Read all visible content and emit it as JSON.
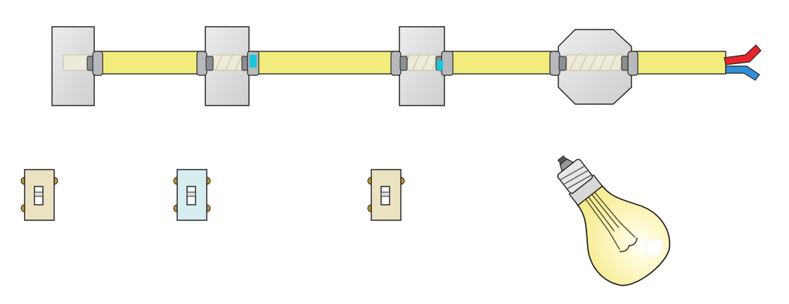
{
  "diagram": {
    "kind": "wiring-diagram-illustration",
    "components": {
      "cable": {
        "name": "yellow-sheathed-cable",
        "color": "#f2ec7c"
      },
      "wires": [
        {
          "name": "live-wire",
          "color": "#e8242b"
        },
        {
          "name": "neutral-wire",
          "color": "#2f8fd6"
        }
      ],
      "boxes": [
        {
          "name": "switch-box-1",
          "shape": "square"
        },
        {
          "name": "switch-box-2",
          "shape": "square",
          "accent": "cyan-marker"
        },
        {
          "name": "switch-box-3",
          "shape": "square",
          "accent": "cyan-marker"
        },
        {
          "name": "junction-box",
          "shape": "octagon"
        }
      ],
      "switches": [
        {
          "name": "switch-1",
          "plate_color": "#ebe2c2"
        },
        {
          "name": "switch-2",
          "plate_color": "#d6eef0"
        },
        {
          "name": "switch-3",
          "plate_color": "#ebe2c2"
        }
      ],
      "lamp": {
        "name": "light-bulb",
        "glass_color": "#fbf3a8"
      }
    },
    "colors": {
      "outline": "#222222",
      "box_fill": "#dcdcdc",
      "clamp": "#b7b9bc",
      "cyan_marker": "#18c6d8"
    }
  }
}
